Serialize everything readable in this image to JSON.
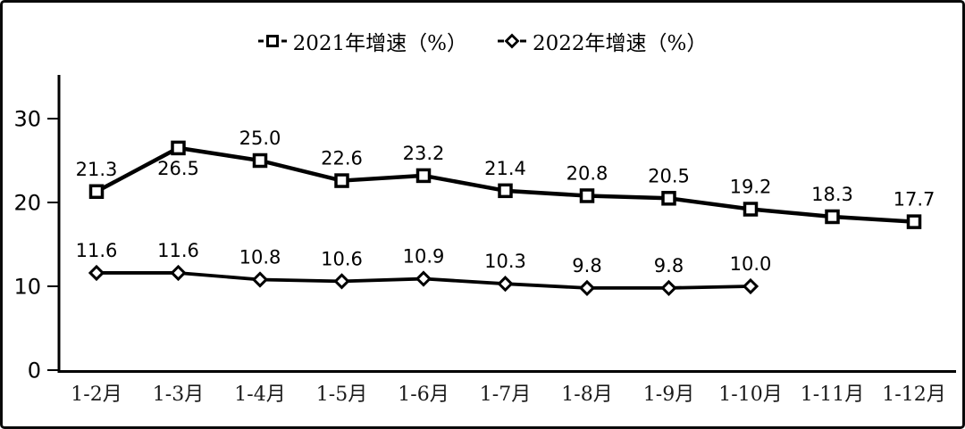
{
  "chart_data": {
    "type": "line",
    "title": "",
    "xlabel": "",
    "ylabel": "",
    "categories": [
      "1-2月",
      "1-3月",
      "1-4月",
      "1-5月",
      "1-6月",
      "1-7月",
      "1-8月",
      "1-9月",
      "1-10月",
      "1-11月",
      "1-12月"
    ],
    "series": [
      {
        "name": "2021年增速（%）",
        "marker": "square",
        "values": [
          21.3,
          26.5,
          25.0,
          22.6,
          23.2,
          21.4,
          20.8,
          20.5,
          19.2,
          18.3,
          17.7
        ],
        "label_below_indices": [
          1
        ]
      },
      {
        "name": "2022年增速（%）",
        "marker": "diamond",
        "values": [
          11.6,
          11.6,
          10.8,
          10.6,
          10.9,
          10.3,
          9.8,
          9.8,
          10.0
        ],
        "label_below_indices": []
      }
    ],
    "yticks": [
      0,
      10,
      20,
      30
    ],
    "ylim": [
      0,
      35.2
    ],
    "grid": false,
    "legend_position": "top-center",
    "line_color": "#000000",
    "marker_fill": "#ffffff",
    "background": "#ffffff",
    "data_labels_shown": true,
    "label_format": "one-decimal"
  }
}
